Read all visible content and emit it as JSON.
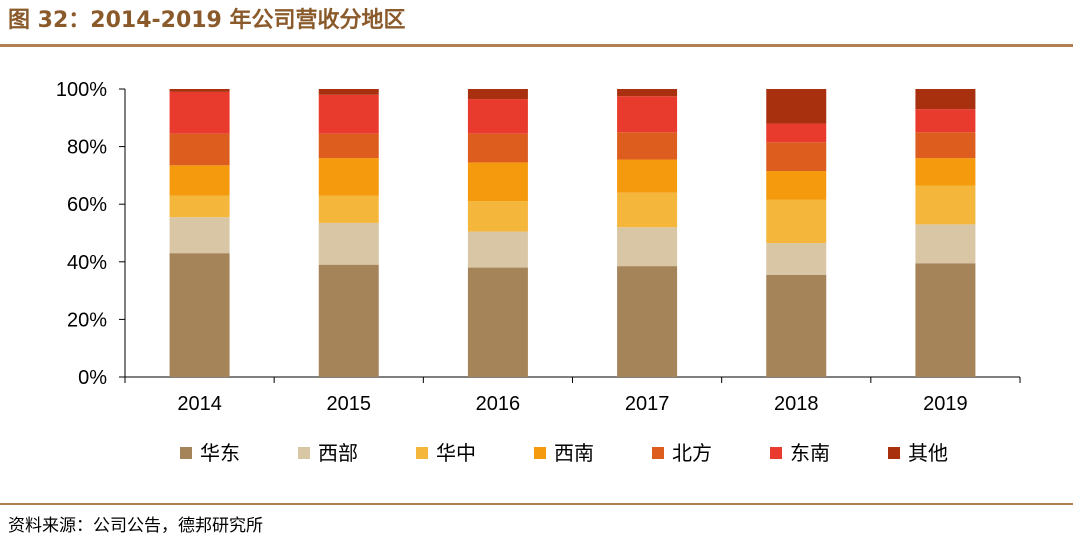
{
  "figure": {
    "title": "图 32：2014-2019 年公司营收分地区",
    "source": "资料来源：公司公告，德邦研究所"
  },
  "chart_data": {
    "type": "bar",
    "stacked": true,
    "title": "图 32：2014-2019 年公司营收分地区",
    "xlabel": "",
    "ylabel": "",
    "ylim": [
      0,
      100
    ],
    "yticks": [
      "0%",
      "20%",
      "40%",
      "60%",
      "80%",
      "100%"
    ],
    "categories": [
      "2014",
      "2015",
      "2016",
      "2017",
      "2018",
      "2019"
    ],
    "series": [
      {
        "name": "华东",
        "color": "#a6845a",
        "values": [
          43,
          39,
          38,
          38.5,
          35.5,
          39.5
        ]
      },
      {
        "name": "西部",
        "color": "#d9c6a4",
        "values": [
          12.5,
          14.5,
          12.5,
          13.5,
          11,
          13.5
        ]
      },
      {
        "name": "华中",
        "color": "#f5b73b",
        "values": [
          7.5,
          9.5,
          10.5,
          12,
          15,
          13.5
        ]
      },
      {
        "name": "西南",
        "color": "#f59a0c",
        "values": [
          10.5,
          13,
          13.5,
          11.5,
          10,
          9.5
        ]
      },
      {
        "name": "北方",
        "color": "#dd5d1f",
        "values": [
          11,
          8.5,
          10,
          9.5,
          10,
          9
        ]
      },
      {
        "name": "东南",
        "color": "#e83b2e",
        "values": [
          14.5,
          13.5,
          12,
          12.5,
          6.5,
          8
        ]
      },
      {
        "name": "其他",
        "color": "#a8300e",
        "values": [
          1,
          2,
          3.5,
          2.5,
          12,
          7
        ]
      }
    ],
    "legend_position": "bottom"
  }
}
